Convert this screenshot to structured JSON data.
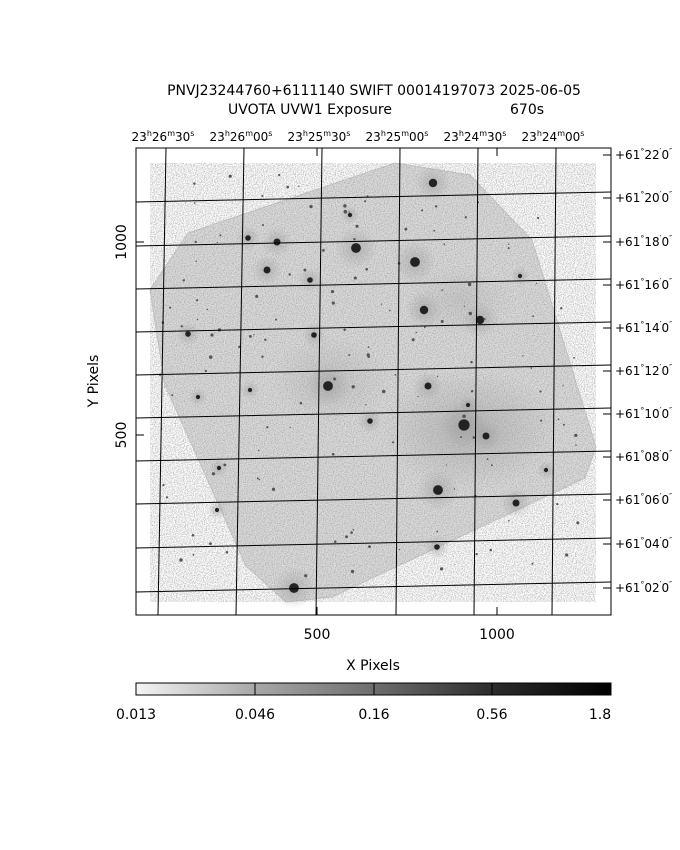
{
  "title": {
    "line1": "PNVJ23244760+6111140 SWIFT 00014197073 2025-06-05",
    "line2_left": "UVOTA UVW1 Exposure",
    "line2_right": "670s"
  },
  "axes": {
    "x_label": "X Pixels",
    "y_label": "Y Pixels",
    "x_ticks": [
      "500",
      "1000"
    ],
    "y_ticks": [
      "500",
      "1000"
    ],
    "ra_labels": [
      {
        "h": "23",
        "m": "26",
        "s": "30"
      },
      {
        "h": "23",
        "m": "26",
        "s": "00"
      },
      {
        "h": "23",
        "m": "25",
        "s": "30"
      },
      {
        "h": "23",
        "m": "25",
        "s": "00"
      },
      {
        "h": "23",
        "m": "24",
        "s": "30"
      },
      {
        "h": "23",
        "m": "24",
        "s": "00"
      }
    ],
    "dec_labels": [
      {
        "d": "+61",
        "m": "22",
        "s": "0"
      },
      {
        "d": "+61",
        "m": "20",
        "s": "0"
      },
      {
        "d": "+61",
        "m": "18",
        "s": "0"
      },
      {
        "d": "+61",
        "m": "16",
        "s": "0"
      },
      {
        "d": "+61",
        "m": "14",
        "s": "0"
      },
      {
        "d": "+61",
        "m": "12",
        "s": "0"
      },
      {
        "d": "+61",
        "m": "10",
        "s": "0"
      },
      {
        "d": "+61",
        "m": "08",
        "s": "0"
      },
      {
        "d": "+61",
        "m": "06",
        "s": "0"
      },
      {
        "d": "+61",
        "m": "04",
        "s": "0"
      },
      {
        "d": "+61",
        "m": "02",
        "s": "0"
      }
    ]
  },
  "colorbar": {
    "labels": [
      "0.013",
      "0.046",
      "0.16",
      "0.56",
      "1.8"
    ]
  }
}
